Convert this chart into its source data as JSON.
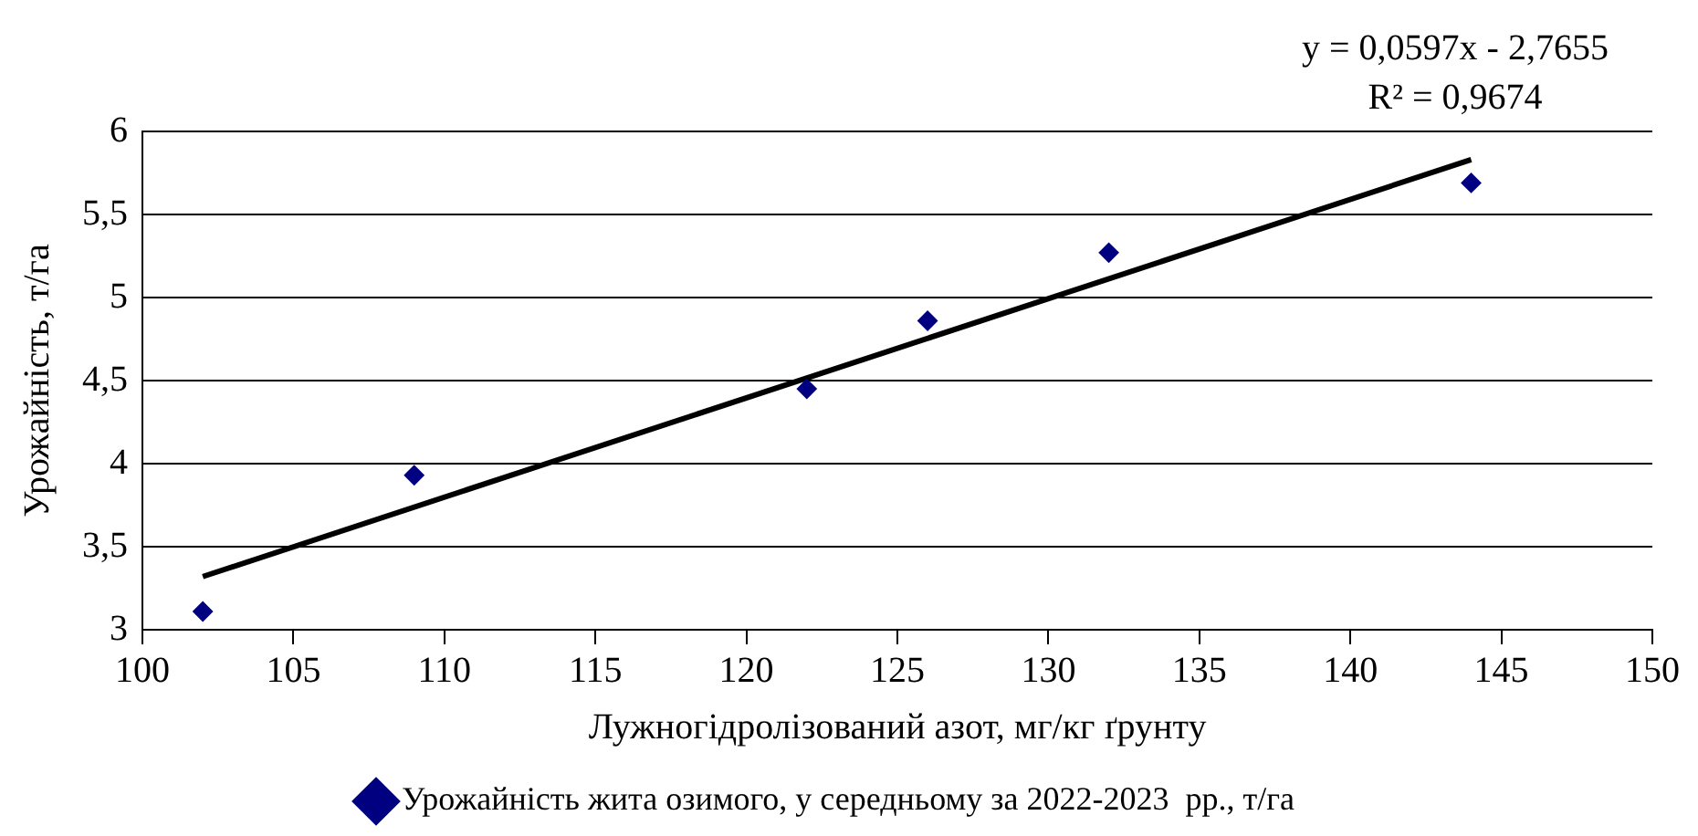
{
  "chart_data": {
    "type": "scatter",
    "xlabel": "Лужногідролізований азот, мг/кг ґрунту",
    "ylabel": "Урожайність, т/га",
    "series": [
      {
        "name": "Урожайність жита озимого, у середньому за 2022-2023  рр., т/га",
        "color": "#000080",
        "x": [
          102,
          109,
          122,
          126,
          132,
          144
        ],
        "values": [
          3.11,
          3.93,
          4.45,
          4.86,
          5.27,
          5.69
        ]
      },
      {
        "type": "line",
        "color": "#000000",
        "x": [
          102,
          144
        ],
        "values": [
          3.32,
          5.83
        ],
        "marker": "none"
      }
    ],
    "xlim": [
      100,
      150
    ],
    "xticks": [
      100,
      105,
      110,
      115,
      120,
      125,
      130,
      135,
      140,
      145,
      150
    ],
    "ylim": [
      3,
      6
    ],
    "yticks": [
      {
        "value": 3,
        "label": "3"
      },
      {
        "value": 3.5,
        "label": "3,5"
      },
      {
        "value": 4,
        "label": "4"
      },
      {
        "value": 4.5,
        "label": "4,5"
      },
      {
        "value": 5,
        "label": "5"
      },
      {
        "value": 5.5,
        "label": "5,5"
      },
      {
        "value": 6,
        "label": "6"
      }
    ],
    "grid": "y",
    "legend": "bottom",
    "marker": "diamond",
    "annotations": [
      "y = 0,0597x - 2,7655",
      "R² = 0,9674"
    ]
  }
}
